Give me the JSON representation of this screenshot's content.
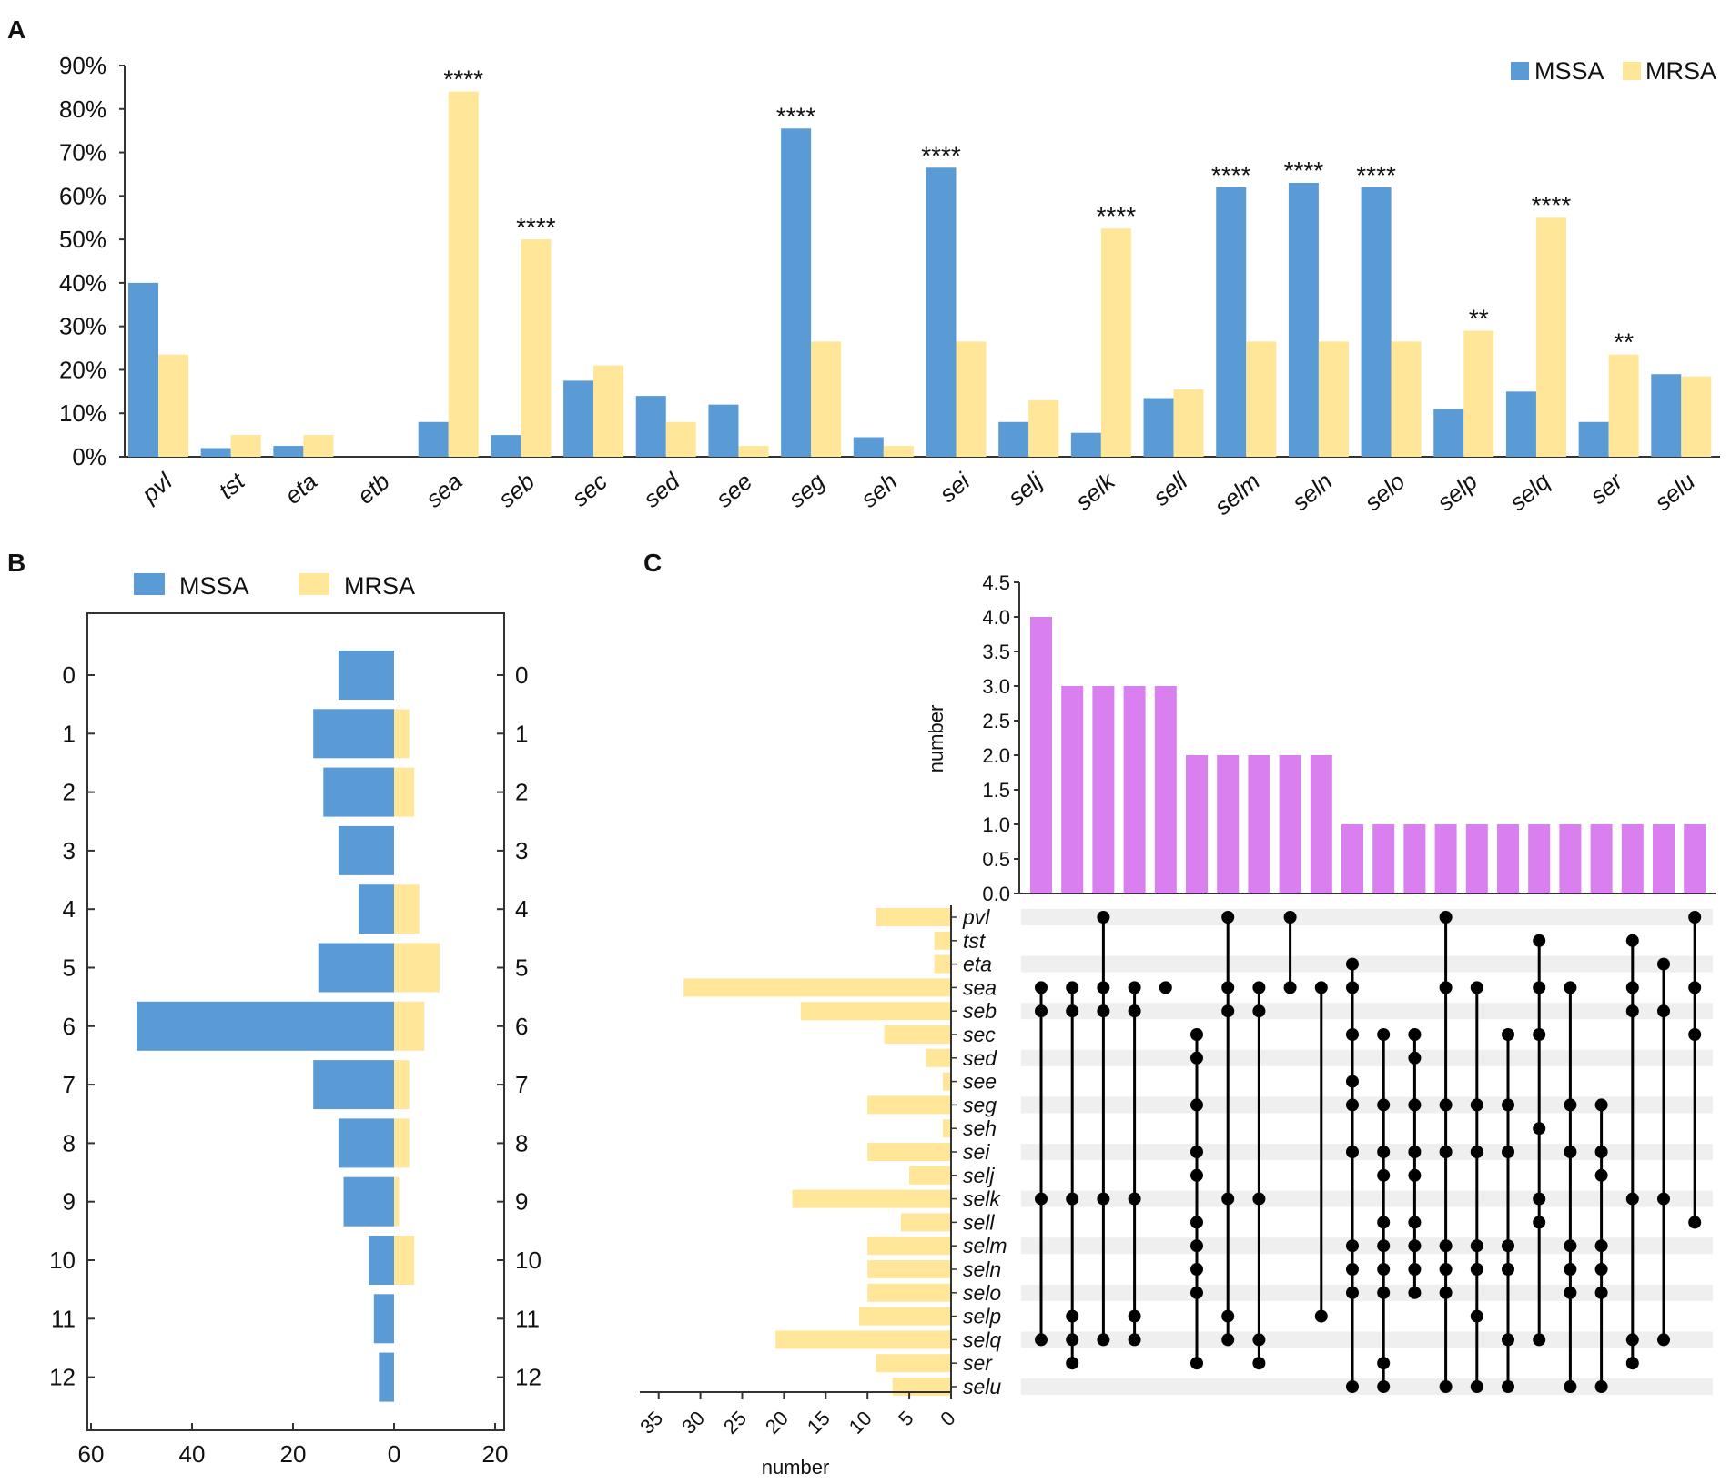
{
  "colors": {
    "mssa": "#5b9bd5",
    "mrsa": "#ffe699",
    "intersection": "#d97ff0",
    "dot": "#000000",
    "stripe": "#efefef"
  },
  "panels": {
    "a": "A",
    "b": "B",
    "c": "C"
  },
  "chart_data": [
    {
      "type": "bar",
      "panel": "A",
      "title": "",
      "xlabel": "",
      "ylabel": "",
      "ylim": [
        0,
        90
      ],
      "ytick_labels": [
        "0%",
        "10%",
        "20%",
        "30%",
        "40%",
        "50%",
        "60%",
        "70%",
        "80%",
        "90%"
      ],
      "legend_position": "top-right",
      "categories": [
        "pvl",
        "tst",
        "eta",
        "etb",
        "sea",
        "seb",
        "sec",
        "sed",
        "see",
        "seg",
        "seh",
        "sei",
        "selj",
        "selk",
        "sell",
        "selm",
        "seln",
        "selo",
        "selp",
        "selq",
        "ser",
        "selu"
      ],
      "series": [
        {
          "name": "MSSA",
          "values": [
            40,
            2,
            2.5,
            0,
            8,
            5,
            17.5,
            14,
            12,
            75.5,
            4.5,
            66.5,
            8,
            5.5,
            13.5,
            62,
            63,
            62,
            11,
            15,
            8,
            19
          ]
        },
        {
          "name": "MRSA",
          "values": [
            23.5,
            5,
            5,
            0,
            84,
            50,
            21,
            8,
            2.5,
            26.5,
            2.5,
            26.5,
            13,
            52.5,
            15.5,
            26.5,
            26.5,
            26.5,
            29,
            55,
            23.5,
            18.5
          ]
        }
      ],
      "significance": [
        "",
        "",
        "",
        "",
        "****",
        "****",
        "",
        "",
        "",
        "****",
        "",
        "****",
        "",
        "****",
        "",
        "****",
        "****",
        "****",
        "**",
        "****",
        "**",
        ""
      ]
    },
    {
      "type": "bar",
      "panel": "B",
      "orientation": "horizontal-diverging",
      "legend_position": "top",
      "legend": [
        "MSSA",
        "MRSA"
      ],
      "categories": [
        "0",
        "1",
        "2",
        "3",
        "4",
        "5",
        "6",
        "7",
        "8",
        "9",
        "10",
        "11",
        "12"
      ],
      "x_tick_labels": [
        "60",
        "40",
        "20",
        "0",
        "20"
      ],
      "xlim": [
        -60,
        20
      ],
      "series": [
        {
          "name": "MSSA",
          "values": [
            11,
            16,
            14,
            11,
            7,
            15,
            51,
            16,
            11,
            10,
            5,
            4,
            3
          ]
        },
        {
          "name": "MRSA",
          "values": [
            0,
            3,
            4,
            0,
            5,
            9,
            6,
            3,
            3,
            1,
            4,
            0,
            0
          ]
        }
      ]
    },
    {
      "type": "upset",
      "panel": "C",
      "ylabel": "number",
      "set_size_xlabel": "number",
      "ylim": [
        0,
        4.5
      ],
      "ytick_labels": [
        "0.0",
        "0.5",
        "1.0",
        "1.5",
        "2.0",
        "2.5",
        "3.0",
        "3.5",
        "4.0",
        "4.5"
      ],
      "set_size_tick_labels": [
        "35",
        "30",
        "25",
        "20",
        "15",
        "10",
        "5",
        "0"
      ],
      "sets": [
        "pvl",
        "tst",
        "eta",
        "sea",
        "seb",
        "sec",
        "sed",
        "see",
        "seg",
        "seh",
        "sei",
        "selj",
        "selk",
        "sell",
        "selm",
        "seln",
        "selo",
        "selp",
        "selq",
        "ser",
        "selu"
      ],
      "set_sizes": [
        9,
        2,
        2,
        32,
        18,
        8,
        3,
        1,
        10,
        1,
        10,
        5,
        19,
        6,
        10,
        10,
        10,
        11,
        21,
        9,
        7
      ],
      "intersection_sizes": [
        4,
        3,
        3,
        3,
        3,
        2,
        2,
        2,
        2,
        2,
        1,
        1,
        1,
        1,
        1,
        1,
        1,
        1,
        1,
        1,
        1,
        1
      ],
      "intersections": [
        [
          "sea",
          "seb",
          "selk",
          "selq"
        ],
        [
          "sea",
          "seb",
          "selk",
          "selp",
          "selq",
          "ser"
        ],
        [
          "pvl",
          "sea",
          "seb",
          "selk",
          "selq"
        ],
        [
          "sea",
          "seb",
          "selk",
          "selp",
          "selq"
        ],
        [
          "sea"
        ],
        [
          "sec",
          "sed",
          "seg",
          "sei",
          "selj",
          "sell",
          "selm",
          "seln",
          "selo",
          "ser"
        ],
        [
          "pvl",
          "sea",
          "seb",
          "selk",
          "selp",
          "selq"
        ],
        [
          "sea",
          "seb",
          "selk",
          "selq",
          "ser"
        ],
        [
          "pvl",
          "sea"
        ],
        [
          "sea",
          "selp"
        ],
        [
          "eta",
          "sea",
          "sec",
          "see",
          "seg",
          "sei",
          "selm",
          "seln",
          "selo",
          "selu"
        ],
        [
          "sec",
          "seg",
          "sei",
          "selj",
          "sell",
          "selm",
          "seln",
          "selo",
          "ser",
          "selu"
        ],
        [
          "sec",
          "sed",
          "seg",
          "sei",
          "selj",
          "sell",
          "selm",
          "seln",
          "selo"
        ],
        [
          "pvl",
          "sea",
          "seg",
          "sei",
          "selm",
          "seln",
          "selo",
          "selu"
        ],
        [
          "sea",
          "seg",
          "sei",
          "selm",
          "seln",
          "selp",
          "selu"
        ],
        [
          "sec",
          "seg",
          "sei",
          "selm",
          "seln",
          "selq",
          "selu"
        ],
        [
          "tst",
          "sea",
          "sec",
          "seh",
          "selk",
          "sell",
          "selq"
        ],
        [
          "sea",
          "seg",
          "sei",
          "selm",
          "seln",
          "selo",
          "selu"
        ],
        [
          "seg",
          "sei",
          "selj",
          "selm",
          "seln",
          "selo",
          "selu"
        ],
        [
          "tst",
          "sea",
          "seb",
          "selk",
          "selq",
          "ser"
        ],
        [
          "eta",
          "seb",
          "selk",
          "selq"
        ],
        [
          "pvl",
          "sea",
          "sec",
          "sell"
        ]
      ]
    }
  ]
}
